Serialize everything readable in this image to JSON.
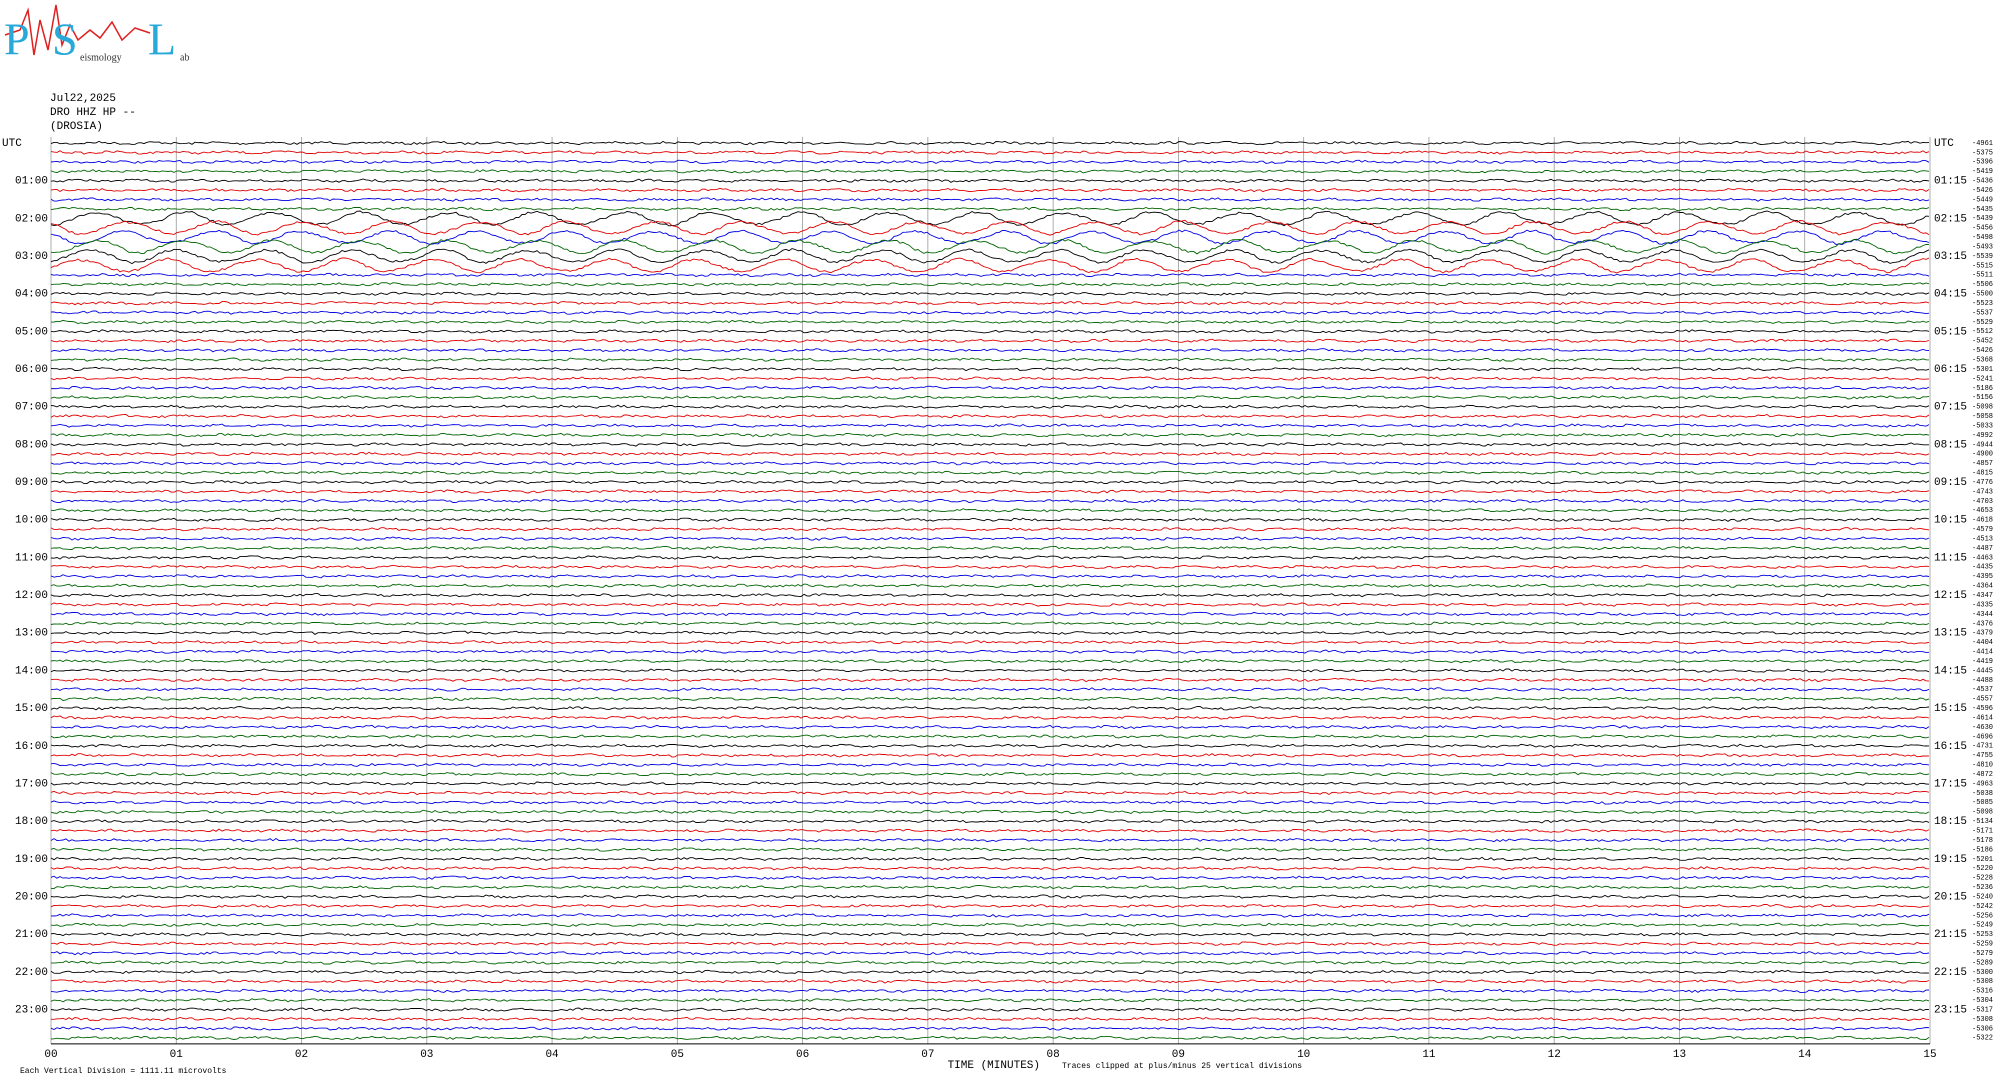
{
  "logo": {
    "letter1": "P",
    "letter2": "S",
    "word2": "eismology",
    "letter3": "L",
    "word3": "ab"
  },
  "header": {
    "date": "Jul22,2025",
    "station": "DRO HHZ HP --",
    "location": "(DROSIA)"
  },
  "left_labels": [
    "UTC",
    "01:00",
    "02:00",
    "03:00",
    "04:00",
    "05:00",
    "06:00",
    "07:00",
    "08:00",
    "09:00",
    "10:00",
    "11:00",
    "12:00",
    "13:00",
    "14:00",
    "15:00",
    "16:00",
    "17:00",
    "18:00",
    "19:00",
    "20:00",
    "21:00",
    "22:00",
    "23:00"
  ],
  "right_labels": [
    "UTC",
    "01:15",
    "02:15",
    "03:15",
    "04:15",
    "05:15",
    "06:15",
    "07:15",
    "08:15",
    "09:15",
    "10:15",
    "11:15",
    "12:15",
    "13:15",
    "14:15",
    "15:15",
    "16:15",
    "17:15",
    "18:15",
    "19:15",
    "20:15",
    "21:15",
    "22:15",
    "23:15"
  ],
  "x_labels": [
    "00",
    "01",
    "02",
    "03",
    "04",
    "05",
    "06",
    "07",
    "08",
    "09",
    "10",
    "11",
    "12",
    "13",
    "14",
    "15"
  ],
  "offsets": [
    "-4961",
    "-5375",
    "-5396",
    "-5419",
    "-5436",
    "-5426",
    "-5449",
    "-5435",
    "-5439",
    "-5456",
    "-5498",
    "-5493",
    "-5539",
    "-5515",
    "-5511",
    "-5506",
    "-5500",
    "-5523",
    "-5537",
    "-5529",
    "-5512",
    "-5452",
    "-5426",
    "-5368",
    "-5301",
    "-5241",
    "-5186",
    "-5156",
    "-5098",
    "-5058",
    "-5033",
    "-4992",
    "-4944",
    "-4900",
    "-4857",
    "-4815",
    "-4776",
    "-4743",
    "-4703",
    "-4653",
    "-4618",
    "-4579",
    "-4513",
    "-4487",
    "-4463",
    "-4435",
    "-4395",
    "-4364",
    "-4347",
    "-4335",
    "-4344",
    "-4376",
    "-4379",
    "-4404",
    "-4414",
    "-4419",
    "-4445",
    "-4488",
    "-4537",
    "-4557",
    "-4596",
    "-4614",
    "-4630",
    "-4696",
    "-4731",
    "-4755",
    "-4810",
    "-4872",
    "-4963",
    "-5038",
    "-5085",
    "-5098",
    "-5134",
    "-5171",
    "-5178",
    "-5186",
    "-5201",
    "-5220",
    "-5228",
    "-5236",
    "-5240",
    "-5242",
    "-5256",
    "-5249",
    "-5253",
    "-5259",
    "-5279",
    "-5289",
    "-5300",
    "-5308",
    "-5316",
    "-5304",
    "-5317",
    "-5308",
    "-5306",
    "-5322"
  ],
  "footer": {
    "scale": "Each Vertical Division = 1111.11 microvolts",
    "axis_title": "TIME (MINUTES)",
    "clip_note": "Traces clipped at plus/minus 25 vertical divisions"
  }
}
